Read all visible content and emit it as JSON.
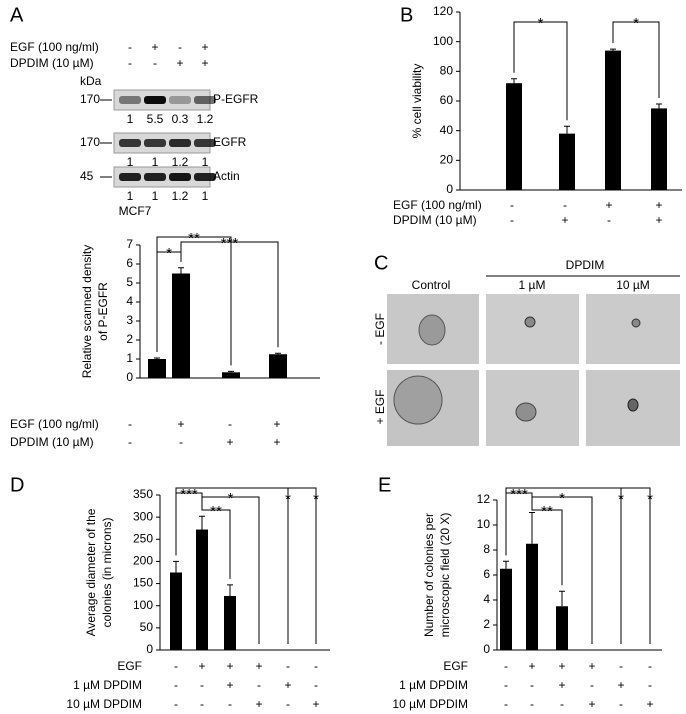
{
  "panels": {
    "a": "A",
    "b": "B",
    "c": "C",
    "d": "D",
    "e": "E"
  },
  "blot": {
    "treatments": [
      {
        "label": "EGF (100 ng/ml)",
        "signs": [
          "-",
          "+",
          "-",
          "+"
        ]
      },
      {
        "label": "DPDIM  (10 µM)",
        "signs": [
          "-",
          "-",
          "+",
          "+"
        ]
      }
    ],
    "unit": "kDa",
    "rows": [
      {
        "marker": 170,
        "name": "P-EGFR",
        "densities": [
          1,
          5.5,
          0.3,
          1.2
        ]
      },
      {
        "marker": 170,
        "name": "EGFR",
        "densities": [
          1,
          1,
          1.2,
          1
        ]
      },
      {
        "marker": 45,
        "name": "Actin",
        "densities": [
          1,
          1,
          1.2,
          1
        ]
      }
    ],
    "cell_line": "MCF7"
  },
  "micrographs": {
    "group": "DPDIM",
    "columns": [
      "Control",
      "1 µM",
      "10 µM"
    ],
    "rows": [
      "- EGF",
      "+ EGF"
    ]
  },
  "chart_data": [
    {
      "type": "bar",
      "y_label": [
        "Relative scanned density",
        "of P-EGFR"
      ],
      "color": "#000000",
      "values": [
        1,
        5.5,
        0.3,
        1.25
      ],
      "errors": [
        0.05,
        0.3,
        0.05,
        0.05
      ],
      "ylim": [
        0,
        7
      ],
      "yticks": [
        0,
        1,
        2,
        3,
        4,
        5,
        6,
        7
      ],
      "significance": [
        "*",
        "**",
        "***"
      ],
      "treatments": [
        {
          "label": "EGF (100 ng/ml)",
          "signs": [
            "-",
            "+",
            "-",
            "+"
          ]
        },
        {
          "label": "DPDIM  (10 µM)",
          "signs": [
            "-",
            "-",
            "+",
            "+"
          ]
        }
      ]
    },
    {
      "type": "bar",
      "y_label": [
        "% cell viability"
      ],
      "color": "#000000",
      "values": [
        72,
        38,
        94,
        55
      ],
      "errors": [
        3,
        5,
        1,
        3
      ],
      "ylim": [
        0,
        120
      ],
      "yticks": [
        0,
        20,
        40,
        60,
        80,
        100,
        120
      ],
      "significance": [
        "*",
        "*"
      ],
      "treatments": [
        {
          "label": "EGF (100 ng/ml)",
          "signs": [
            "-",
            "-",
            "+",
            "+"
          ]
        },
        {
          "label": "DPDIM  (10 µM)",
          "signs": [
            "-",
            "+",
            "-",
            "+"
          ]
        }
      ]
    },
    {
      "type": "bar",
      "y_label": [
        "Average diameter of the",
        "colonies (in microns)"
      ],
      "color": "#000000",
      "values": [
        175,
        272,
        122,
        0,
        0,
        0
      ],
      "errors": [
        25,
        30,
        25,
        null,
        null,
        null
      ],
      "ylim": [
        0,
        350
      ],
      "yticks": [
        0,
        50,
        100,
        150,
        200,
        250,
        300,
        350
      ],
      "significance": [
        "***",
        "**",
        "*",
        "*",
        "*"
      ],
      "treatments": [
        {
          "label": "EGF",
          "signs": [
            "-",
            "+",
            "+",
            "+",
            "-",
            "-"
          ]
        },
        {
          "label": "1 µM DPDIM",
          "signs": [
            "-",
            "-",
            "+",
            "-",
            "+",
            "-"
          ]
        },
        {
          "label": "10 µM DPDIM",
          "signs": [
            "-",
            "-",
            "-",
            "+",
            "-",
            "+"
          ]
        }
      ]
    },
    {
      "type": "bar",
      "y_label": [
        "Number of colonies per",
        "microscopic field (20 X)"
      ],
      "color": "#000000",
      "values": [
        6.5,
        8.5,
        3.5,
        0,
        0,
        0
      ],
      "errors": [
        0.6,
        2.5,
        1.2,
        null,
        null,
        null
      ],
      "ylim": [
        0,
        12
      ],
      "yticks": [
        0,
        2,
        4,
        6,
        8,
        10,
        12
      ],
      "significance": [
        "***",
        "**",
        "*",
        "*",
        "*"
      ],
      "treatments": [
        {
          "label": "EGF",
          "signs": [
            "-",
            "+",
            "+",
            "+",
            "-",
            "-"
          ]
        },
        {
          "label": "1 µM DPDIM",
          "signs": [
            "-",
            "-",
            "+",
            "-",
            "+",
            "-"
          ]
        },
        {
          "label": "10 µM DPDIM",
          "signs": [
            "-",
            "-",
            "-",
            "+",
            "-",
            "+"
          ]
        }
      ]
    }
  ]
}
